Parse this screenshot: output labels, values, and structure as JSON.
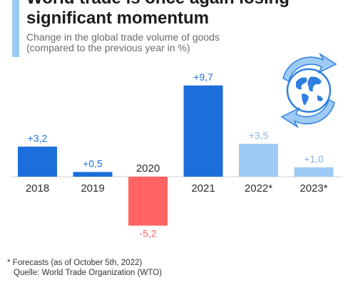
{
  "header": {
    "title_line1": "World trade is once again losing",
    "title_line2": "significant momentum",
    "subtitle_line1": "Change in the global trade volume of goods",
    "subtitle_line2": "(compared to the previous year in %)"
  },
  "icon": "globe-recycle-arrows-icon",
  "colors": {
    "actual": "#1c6fdb",
    "forecast": "#9ecbf5",
    "negative": "#ff6363",
    "forecast_label": "#8ab4e0"
  },
  "chart_data": {
    "type": "bar",
    "title": "",
    "xlabel": "",
    "ylabel": "",
    "categories": [
      "2018",
      "2019",
      "2020",
      "2021",
      "2022*",
      "2023*"
    ],
    "values": [
      3.2,
      0.5,
      -5.2,
      9.7,
      3.5,
      1.0
    ],
    "value_labels": [
      "+3,2",
      "+0,5",
      "-5,2",
      "+9,7",
      "+3,5",
      "+1,0"
    ],
    "forecast": [
      false,
      false,
      false,
      false,
      true,
      true
    ],
    "ylim": [
      -5.2,
      9.7
    ],
    "grid": false,
    "legend": "none"
  },
  "footer": {
    "note": "* Forecasts (as of October 5th, 2022)",
    "source": "Quelle: World Trade Organization (WTO)"
  }
}
